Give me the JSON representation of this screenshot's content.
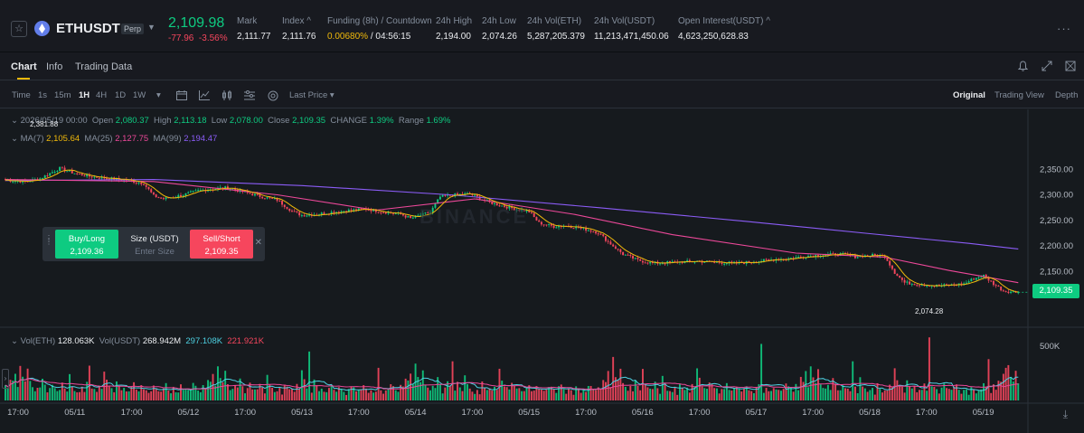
{
  "header": {
    "symbol": "ETHUSDT",
    "contract_type": "Perp",
    "last_price": "2,109.98",
    "change": "-77.96",
    "change_pct": "-3.56%",
    "mark_label": "Mark",
    "mark_value": "2,111.77",
    "index_label": "Index",
    "index_value": "2,111.76",
    "funding_label": "Funding (8h) / Countdown",
    "funding_rate": "0.00680%",
    "countdown": "/ 04:56:15",
    "high_label": "24h High",
    "high_value": "2,194.00",
    "low_label": "24h Low",
    "low_value": "2,074.26",
    "vol_eth_label": "24h Vol(ETH)",
    "vol_eth_value": "5,287,205.379",
    "vol_usdt_label": "24h Vol(USDT)",
    "vol_usdt_value": "11,213,471,450.06",
    "oi_label": "Open Interest(USDT)",
    "oi_value": "4,623,250,628.83",
    "more_label": "···"
  },
  "tabs": {
    "items": [
      "Chart",
      "Info",
      "Trading Data"
    ],
    "active": "Chart"
  },
  "toolbar": {
    "time_label": "Time",
    "intervals": [
      "1s",
      "15m",
      "1H",
      "4H",
      "1D",
      "1W"
    ],
    "active_interval": "1H",
    "price_type": "Last Price",
    "views": [
      "Original",
      "Trading View",
      "Depth"
    ],
    "active_view": "Original"
  },
  "legend": {
    "date": "2026/05/19 00:00",
    "open_label": "Open",
    "open": "2,080.37",
    "high_label": "High",
    "high": "2,113.18",
    "low_label": "Low",
    "low": "2,078.00",
    "close_label": "Close",
    "close": "2,109.35",
    "change_label": "CHANGE",
    "change": "1.39%",
    "range_label": "Range",
    "range": "1.69%",
    "ma7_label": "MA(7)",
    "ma7": "2,105.64",
    "ma25_label": "MA(25)",
    "ma25": "2,127.75",
    "ma99_label": "MA(99)",
    "ma99": "2,194.47"
  },
  "volume_legend": {
    "eth_label": "Vol(ETH)",
    "eth": "128.063K",
    "usdt_label": "Vol(USDT)",
    "usdt": "268.942M",
    "ma_a": "297.108K",
    "ma_b": "221.921K"
  },
  "order_widget": {
    "buy_label": "Buy/Long",
    "buy_price": "2,109.36",
    "size_label": "Size (USDT)",
    "size_placeholder": "Enter Size",
    "sell_label": "Sell/Short",
    "sell_price": "2,109.35"
  },
  "chart_marks": {
    "current_price": "2,109.35",
    "low_mark": "2,074.28",
    "high_mark": "2,381.88",
    "watermark": "BINANCE"
  },
  "chart_data": {
    "type": "candlestick",
    "price_axis": [
      "2,350.00",
      "2,300.00",
      "2,250.00",
      "2,200.00",
      "2,150.00"
    ],
    "price_ticks": [
      2350,
      2300,
      2250,
      2200,
      2150
    ],
    "ylim": [
      2055,
      2400
    ],
    "volume_axis": [
      "500K"
    ],
    "volume_ticks": [
      500000
    ],
    "volume_max": 640000,
    "time_axis": [
      "17:00",
      "05/11",
      "17:00",
      "05/12",
      "17:00",
      "05/13",
      "17:00",
      "05/14",
      "17:00",
      "05/15",
      "17:00",
      "05/16",
      "17:00",
      "05/17",
      "17:00",
      "05/18",
      "17:00",
      "05/19"
    ],
    "close_path": [
      [
        0,
        2329
      ],
      [
        8,
        2326
      ],
      [
        14,
        2332
      ],
      [
        22,
        2352
      ],
      [
        26,
        2345
      ],
      [
        30,
        2340
      ],
      [
        34,
        2336
      ],
      [
        40,
        2333
      ],
      [
        50,
        2328
      ],
      [
        56,
        2322
      ],
      [
        60,
        2298
      ],
      [
        64,
        2292
      ],
      [
        72,
        2300
      ],
      [
        78,
        2308
      ],
      [
        84,
        2312
      ],
      [
        90,
        2314
      ],
      [
        96,
        2306
      ],
      [
        104,
        2296
      ],
      [
        110,
        2290
      ],
      [
        116,
        2268
      ],
      [
        120,
        2260
      ],
      [
        126,
        2262
      ],
      [
        132,
        2266
      ],
      [
        140,
        2270
      ],
      [
        146,
        2272
      ],
      [
        154,
        2266
      ],
      [
        160,
        2262
      ],
      [
        164,
        2254
      ],
      [
        172,
        2266
      ],
      [
        176,
        2296
      ],
      [
        182,
        2300
      ],
      [
        188,
        2302
      ],
      [
        196,
        2285
      ],
      [
        204,
        2275
      ],
      [
        212,
        2267
      ],
      [
        216,
        2245
      ],
      [
        222,
        2238
      ],
      [
        226,
        2240
      ],
      [
        232,
        2236
      ],
      [
        240,
        2226
      ],
      [
        244,
        2208
      ],
      [
        250,
        2184
      ],
      [
        256,
        2172
      ],
      [
        262,
        2166
      ],
      [
        270,
        2168
      ],
      [
        280,
        2170
      ],
      [
        288,
        2168
      ],
      [
        296,
        2166
      ],
      [
        304,
        2170
      ],
      [
        312,
        2174
      ],
      [
        318,
        2176
      ],
      [
        324,
        2180
      ],
      [
        330,
        2182
      ],
      [
        338,
        2184
      ],
      [
        344,
        2179
      ],
      [
        350,
        2182
      ],
      [
        356,
        2180
      ],
      [
        360,
        2148
      ],
      [
        364,
        2128
      ],
      [
        370,
        2125
      ],
      [
        376,
        2122
      ],
      [
        382,
        2123
      ],
      [
        388,
        2126
      ],
      [
        392,
        2136
      ],
      [
        396,
        2142
      ],
      [
        400,
        2126
      ],
      [
        404,
        2112
      ],
      [
        408,
        2110
      ],
      [
        410,
        2109.35
      ]
    ],
    "ma99_path": [
      [
        0,
        2328
      ],
      [
        60,
        2330
      ],
      [
        120,
        2318
      ],
      [
        180,
        2300
      ],
      [
        240,
        2275
      ],
      [
        300,
        2248
      ],
      [
        350,
        2224
      ],
      [
        390,
        2205
      ],
      [
        410,
        2194
      ]
    ],
    "ma25_path": [
      [
        0,
        2330
      ],
      [
        60,
        2326
      ],
      [
        110,
        2300
      ],
      [
        150,
        2270
      ],
      [
        190,
        2292
      ],
      [
        230,
        2262
      ],
      [
        270,
        2222
      ],
      [
        320,
        2186
      ],
      [
        356,
        2178
      ],
      [
        382,
        2152
      ],
      [
        410,
        2128
      ]
    ],
    "volume_pattern": [
      120,
      90,
      180,
      150,
      240,
      110,
      300,
      200,
      160,
      260,
      140,
      90,
      70,
      110,
      80,
      180,
      130,
      60,
      90,
      140,
      100,
      80,
      70,
      150,
      90,
      60,
      210,
      120,
      80,
      70,
      60,
      90,
      50,
      140,
      100,
      70,
      80,
      60,
      120,
      90,
      260,
      180,
      110,
      90,
      70,
      160,
      120,
      80,
      100,
      60,
      70,
      90,
      130,
      80,
      60,
      110,
      90,
      70,
      50,
      80,
      120,
      90,
      70,
      60,
      100,
      140,
      80,
      60,
      90,
      70,
      50,
      110,
      80,
      60,
      90,
      70,
      130,
      100,
      80,
      60
    ],
    "volume_spikes": [
      [
        34,
        320000
      ],
      [
        123,
        450000
      ],
      [
        151,
        300000
      ],
      [
        181,
        360000
      ],
      [
        246,
        400000
      ],
      [
        258,
        290000
      ],
      [
        306,
        520000
      ],
      [
        343,
        360000
      ],
      [
        374,
        580000
      ],
      [
        398,
        380000
      ],
      [
        405,
        300000
      ]
    ]
  },
  "colors": {
    "up": "#0ecb81",
    "down": "#f6465d",
    "ma7": "#f0b90b",
    "ma25": "#ec4899",
    "ma99": "#8b5cf6",
    "vol_ma_a": "#4dd0e1",
    "vol_ma_b": "#ec4899"
  }
}
